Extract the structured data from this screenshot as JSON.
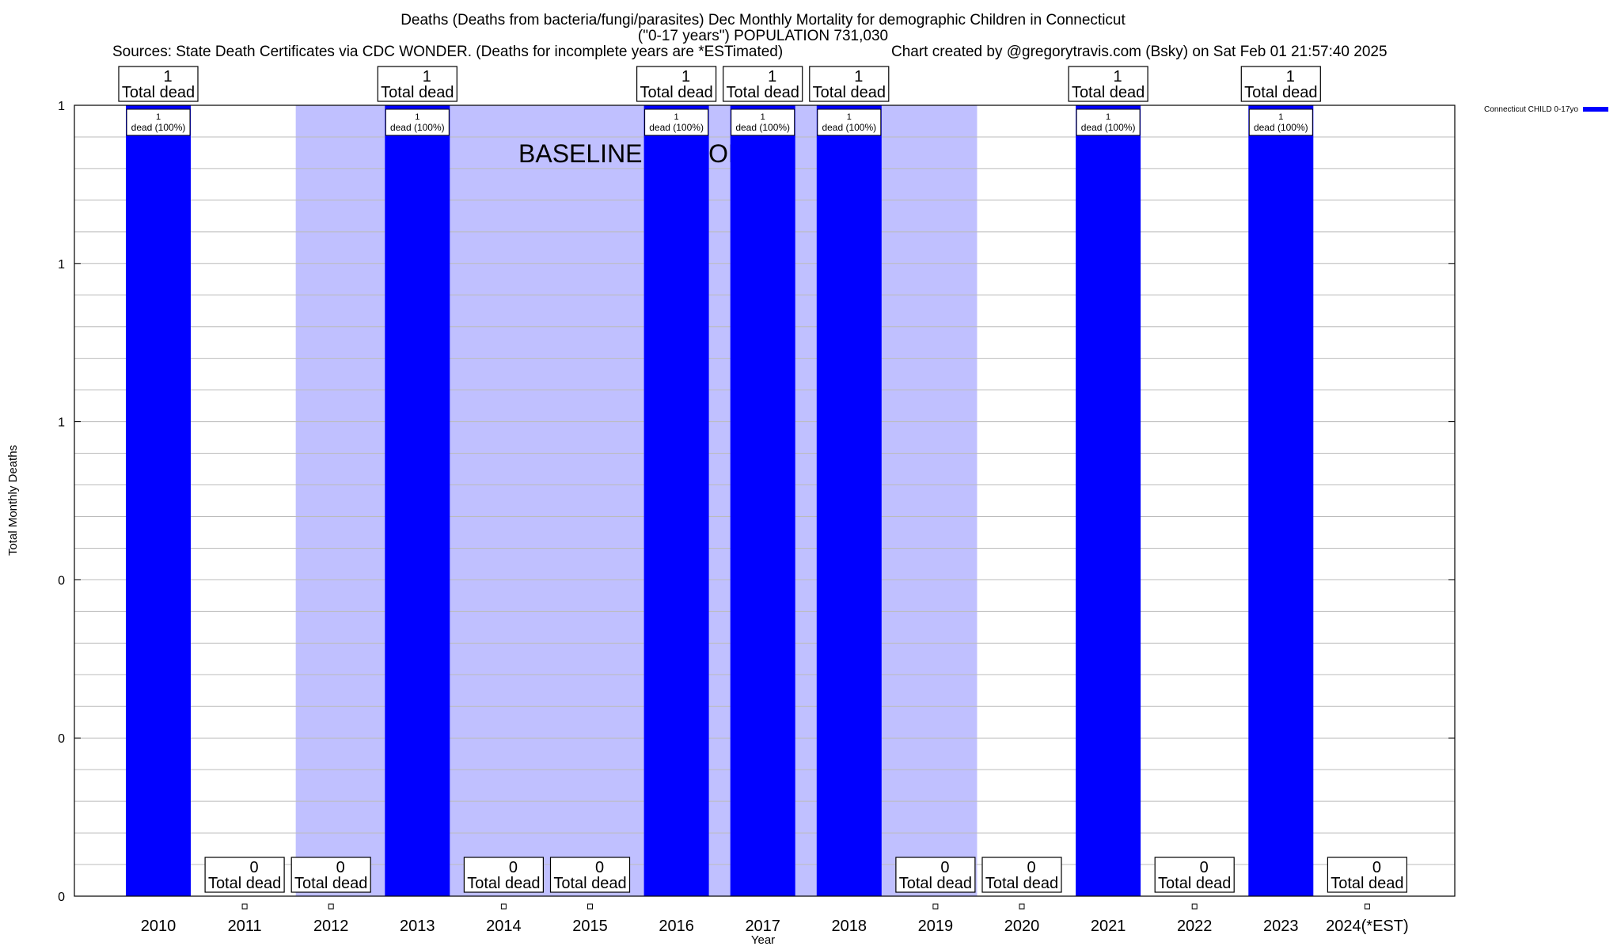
{
  "chart_data": {
    "type": "bar",
    "title_line1": "Deaths (Deaths from bacteria/fungi/parasites) Dec Monthly Mortality for demographic Children in Connecticut",
    "title_line2": "(\"0-17 years\") POPULATION 731,030",
    "sources": "Sources: State Death Certificates via CDC WONDER. (Deaths for incomplete years are *ESTimated)",
    "credit": "Chart created by @gregorytravis.com (Bsky) on Sat Feb 01 21:57:40 2025",
    "xlabel": "Year",
    "ylabel": "Total Monthly Deaths",
    "ylim": [
      0,
      1
    ],
    "y_tick_labels": [
      "0",
      "0",
      "0",
      "1",
      "1",
      "1"
    ],
    "grid": true,
    "legend_position": "top-right",
    "categories": [
      "2010",
      "2011",
      "2012",
      "2013",
      "2014",
      "2015",
      "2016",
      "2017",
      "2018",
      "2019",
      "2020",
      "2021",
      "2022",
      "2023",
      "2024(*EST)"
    ],
    "series": [
      {
        "name": "Connecticut CHILD 0-17yo",
        "color": "#0000ff",
        "values": [
          1,
          0,
          0,
          1,
          0,
          0,
          1,
          1,
          1,
          0,
          0,
          1,
          0,
          1,
          0
        ]
      }
    ],
    "total_labels": [
      "1",
      "0",
      "0",
      "1",
      "0",
      "0",
      "1",
      "1",
      "1",
      "0",
      "0",
      "1",
      "0",
      "1",
      "0"
    ],
    "total_suffix": "Total dead",
    "bar_label": "dead (100%)",
    "baseline": {
      "label": "BASELINE PERIOD",
      "start_category": "2012",
      "end_category": "2019",
      "color": "#c0c0ff"
    }
  }
}
